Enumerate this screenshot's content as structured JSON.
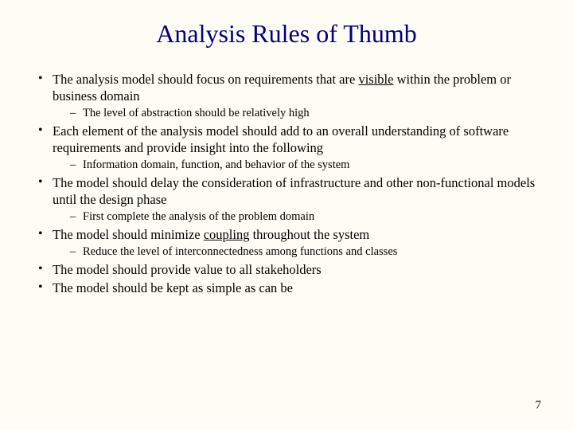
{
  "background_color": "#fdfdf5",
  "title_color": "#000080",
  "text_color": "#000000",
  "title_fontsize": 32,
  "bullet_fontsize": 16.5,
  "sub_fontsize": 14.5,
  "font_family": "Times New Roman",
  "title": "Analysis Rules of Thumb",
  "page_number": "7",
  "bullets": {
    "b1_pre": "The analysis model should focus on requirements that are ",
    "b1_u": "visible",
    "b1_post": " within the problem or business domain",
    "b1_sub": "The level of abstraction should be relatively high",
    "b2": "Each element of the analysis model should add to an overall understanding of software requirements and provide insight into the following",
    "b2_sub": "Information domain, function, and behavior of the system",
    "b3": "The model should delay the consideration of infrastructure and other non-functional models until the design phase",
    "b3_sub": "First complete the analysis of the problem domain",
    "b4_pre": "The model should minimize ",
    "b4_u": "coupling",
    "b4_post": " throughout the system",
    "b4_sub": "Reduce the level of interconnectedness among functions and classes",
    "b5": "The model should provide value to all stakeholders",
    "b6": "The model should be kept as simple as can be"
  }
}
